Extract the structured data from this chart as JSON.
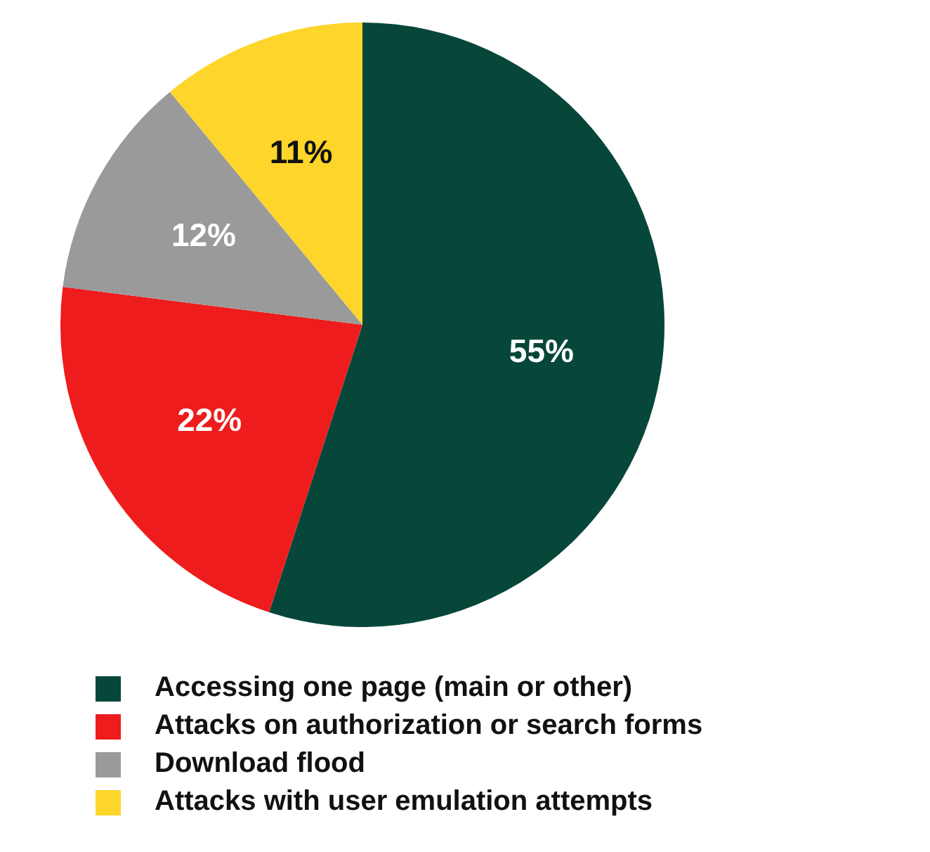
{
  "chart_data": {
    "type": "pie",
    "categories": [
      "Accessing one page (main or other)",
      "Attacks on authorization or search forms",
      "Download flood",
      "Attacks with user emulation attempts"
    ],
    "values": [
      55,
      22,
      12,
      11
    ],
    "colors": [
      "#06473a",
      "#ee1c1c",
      "#9a9a9a",
      "#fdd52b"
    ],
    "value_labels": [
      "55%",
      "22%",
      "12%",
      "11%"
    ],
    "legend": "bottom"
  }
}
